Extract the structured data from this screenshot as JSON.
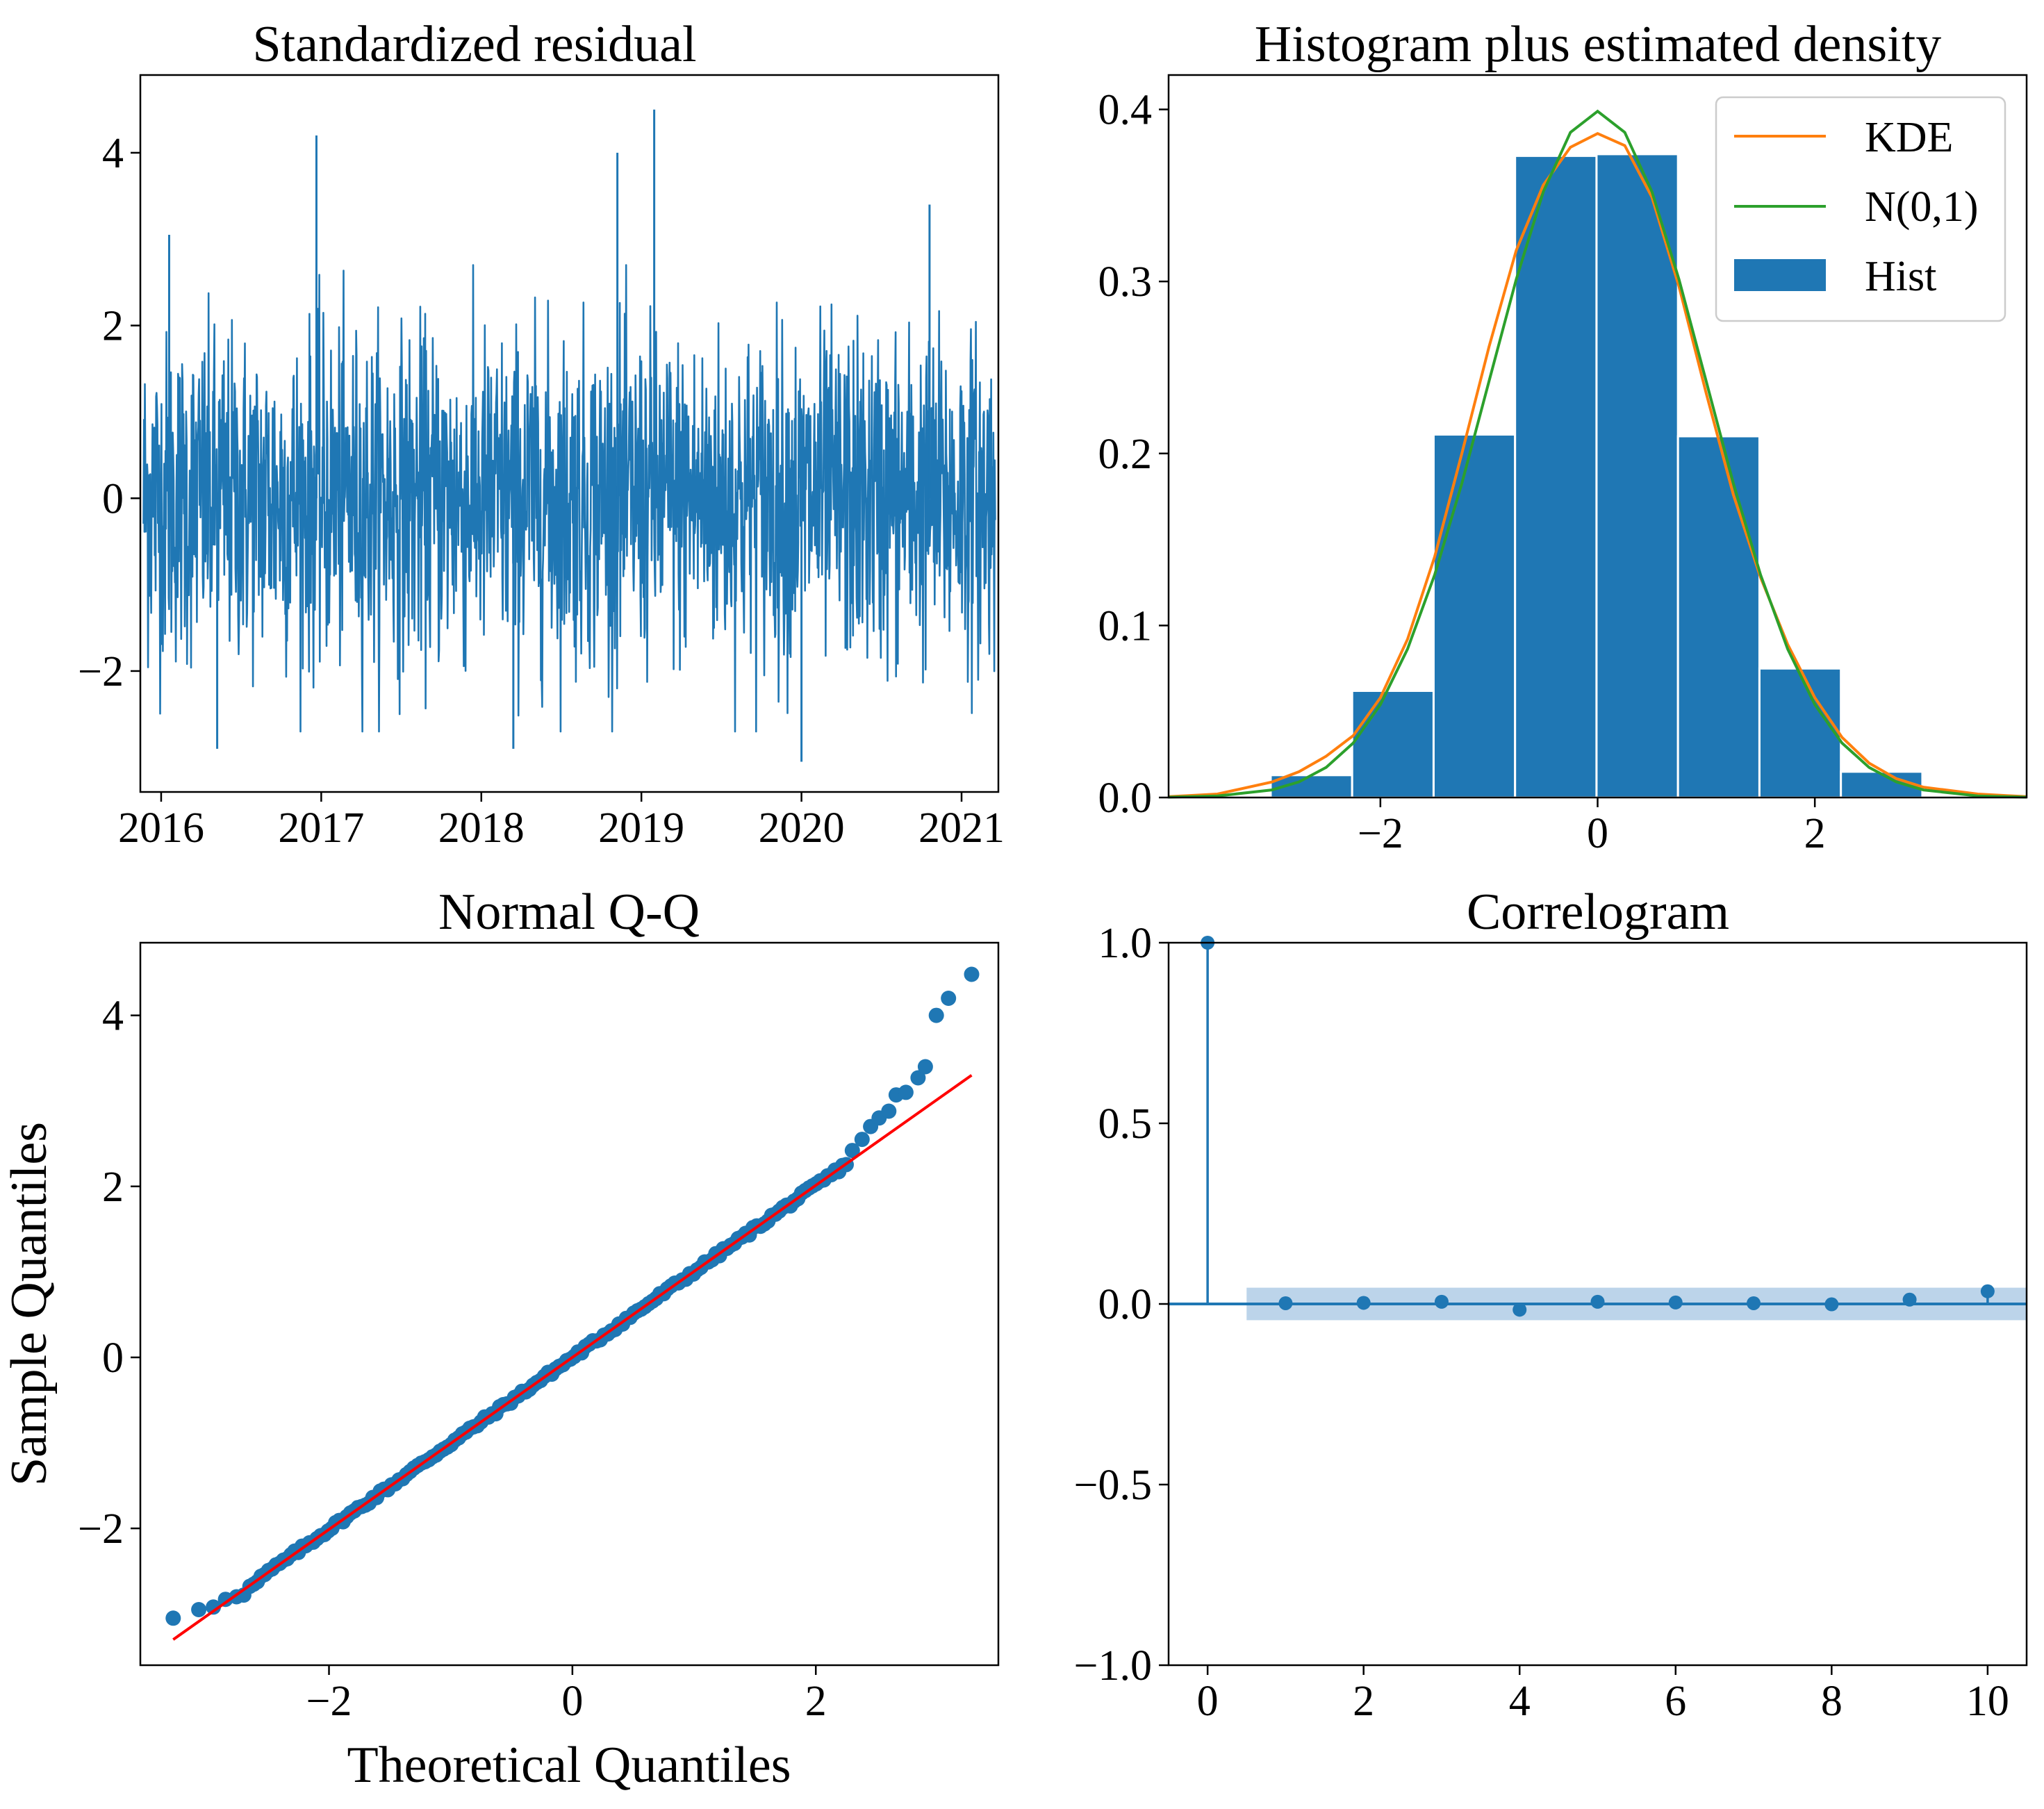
{
  "colors": {
    "blue": "#1f77b4",
    "orange": "#ff7f0e",
    "green": "#2ca02c",
    "red": "#ff0000",
    "conf_band": "#bcd4ea"
  },
  "chart_data": [
    {
      "id": "residual",
      "type": "line",
      "title": "Standardized residual",
      "xlabel": "",
      "ylabel": "",
      "xlim": [
        2015.87,
        2021.23
      ],
      "ylim": [
        -3.4,
        4.9
      ],
      "x_ticks": [
        2016,
        2017,
        2018,
        2019,
        2020,
        2021
      ],
      "x_tick_labels": [
        "2016",
        "2017",
        "2018",
        "2019",
        "2020",
        "2021"
      ],
      "y_ticks": [
        -2,
        0,
        2,
        4
      ],
      "y_tick_labels": [
        "−2",
        "0",
        "2",
        "4"
      ],
      "series": [
        {
          "name": "standardized residual",
          "n_points": 1900,
          "mean": 0,
          "std": 1
        }
      ],
      "notable_spikes": [
        {
          "x": 2016.97,
          "y": 4.2
        },
        {
          "x": 2018.85,
          "y": 4.0
        },
        {
          "x": 2019.08,
          "y": 4.5
        },
        {
          "x": 2020.8,
          "y": 3.4
        },
        {
          "x": 2016.05,
          "y": 3.05
        },
        {
          "x": 2020.0,
          "y": -3.05
        },
        {
          "x": 2016.35,
          "y": -2.9
        },
        {
          "x": 2018.2,
          "y": -2.9
        }
      ]
    },
    {
      "id": "histogram",
      "type": "bar",
      "title": "Histogram plus estimated density",
      "xlim": [
        -3.95,
        3.95
      ],
      "ylim": [
        0,
        0.42
      ],
      "x_ticks": [
        -2,
        0,
        2
      ],
      "x_tick_labels": [
        "−2",
        "0",
        "2"
      ],
      "y_ticks": [
        0.0,
        0.1,
        0.2,
        0.3,
        0.4
      ],
      "y_tick_labels": [
        "0.0",
        "0.1",
        "0.2",
        "0.3",
        "0.4"
      ],
      "bins": [
        {
          "left": -3.01,
          "right": -2.26,
          "height": 0.013
        },
        {
          "left": -2.26,
          "right": -1.51,
          "height": 0.062
        },
        {
          "left": -1.51,
          "right": -0.76,
          "height": 0.211
        },
        {
          "left": -0.76,
          "right": -0.01,
          "height": 0.373
        },
        {
          "left": -0.01,
          "right": 0.74,
          "height": 0.374
        },
        {
          "left": 0.74,
          "right": 1.49,
          "height": 0.21
        },
        {
          "left": 1.49,
          "right": 2.24,
          "height": 0.075
        },
        {
          "left": 2.24,
          "right": 2.99,
          "height": 0.015
        }
      ],
      "series": [
        {
          "name": "KDE",
          "x": [
            -3.95,
            -3.5,
            -3.0,
            -2.75,
            -2.5,
            -2.25,
            -2.0,
            -1.75,
            -1.5,
            -1.25,
            -1.0,
            -0.75,
            -0.5,
            -0.25,
            0.0,
            0.25,
            0.5,
            0.75,
            1.0,
            1.25,
            1.5,
            1.75,
            2.0,
            2.25,
            2.5,
            2.75,
            3.0,
            3.5,
            3.95
          ],
          "y": [
            0.0005,
            0.002,
            0.009,
            0.015,
            0.024,
            0.036,
            0.058,
            0.092,
            0.14,
            0.2,
            0.262,
            0.318,
            0.356,
            0.378,
            0.386,
            0.379,
            0.349,
            0.297,
            0.235,
            0.176,
            0.128,
            0.089,
            0.058,
            0.035,
            0.02,
            0.011,
            0.006,
            0.002,
            0.0005
          ]
        },
        {
          "name": "N(0,1)",
          "x": [
            -3.95,
            -3.5,
            -3.0,
            -2.75,
            -2.5,
            -2.25,
            -2.0,
            -1.75,
            -1.5,
            -1.25,
            -1.0,
            -0.75,
            -0.5,
            -0.25,
            0.0,
            0.25,
            0.5,
            0.75,
            1.0,
            1.25,
            1.5,
            1.75,
            2.0,
            2.25,
            2.5,
            2.75,
            3.0,
            3.5,
            3.95
          ],
          "y": [
            0.0002,
            0.0009,
            0.0044,
            0.0091,
            0.0175,
            0.0317,
            0.054,
            0.0863,
            0.1295,
            0.1826,
            0.242,
            0.3011,
            0.3521,
            0.3867,
            0.3989,
            0.3867,
            0.3521,
            0.3011,
            0.242,
            0.1826,
            0.1295,
            0.0863,
            0.054,
            0.0317,
            0.0175,
            0.0091,
            0.0044,
            0.0009,
            0.0002
          ]
        }
      ],
      "legend": {
        "position": "top-right",
        "entries": [
          "KDE",
          "N(0,1)",
          "Hist"
        ]
      }
    },
    {
      "id": "qq",
      "type": "scatter",
      "title": "Normal Q-Q",
      "xlabel": "Theoretical Quantiles",
      "ylabel": "Sample Quantiles",
      "xlim": [
        -3.55,
        3.5
      ],
      "ylim": [
        -3.6,
        4.85
      ],
      "x_ticks": [
        -2,
        0,
        2
      ],
      "x_tick_labels": [
        "−2",
        "0",
        "2"
      ],
      "y_ticks": [
        -2,
        0,
        2,
        4
      ],
      "y_tick_labels": [
        "−2",
        "0",
        "2",
        "4"
      ],
      "reference_line": {
        "x": [
          -3.28,
          3.28
        ],
        "y": [
          -3.3,
          3.3
        ]
      },
      "tail_points": {
        "low": [
          [
            -3.28,
            -3.05
          ],
          [
            -3.07,
            -2.95
          ],
          [
            -2.95,
            -2.92
          ],
          [
            -2.85,
            -2.83
          ],
          [
            -2.76,
            -2.8
          ],
          [
            -2.7,
            -2.78
          ]
        ],
        "high": [
          [
            2.3,
            2.42
          ],
          [
            2.38,
            2.55
          ],
          [
            2.45,
            2.7
          ],
          [
            2.52,
            2.8
          ],
          [
            2.6,
            2.88
          ],
          [
            2.66,
            3.07
          ],
          [
            2.74,
            3.1
          ],
          [
            2.84,
            3.27
          ],
          [
            2.9,
            3.4
          ],
          [
            2.99,
            4.0
          ],
          [
            3.09,
            4.2
          ],
          [
            3.28,
            4.48
          ]
        ]
      }
    },
    {
      "id": "correlogram",
      "type": "stem",
      "title": "Correlogram",
      "xlim": [
        -0.5,
        10.5
      ],
      "ylim": [
        -1.0,
        1.0
      ],
      "x_ticks": [
        0,
        2,
        4,
        6,
        8,
        10
      ],
      "x_tick_labels": [
        "0",
        "2",
        "4",
        "6",
        "8",
        "10"
      ],
      "y_ticks": [
        -1.0,
        -0.5,
        0.0,
        0.5,
        1.0
      ],
      "y_tick_labels": [
        "−1.0",
        "−0.5",
        "0.0",
        "0.5",
        "1.0"
      ],
      "lags": [
        0,
        1,
        2,
        3,
        4,
        5,
        6,
        7,
        8,
        9,
        10
      ],
      "values": [
        1.0,
        0.002,
        0.003,
        0.006,
        -0.016,
        0.006,
        0.004,
        0.002,
        -0.001,
        0.012,
        0.035
      ],
      "confidence_band": {
        "x_start": 0.5,
        "x_end": 10.5,
        "upper": 0.045,
        "lower": -0.045
      }
    }
  ]
}
